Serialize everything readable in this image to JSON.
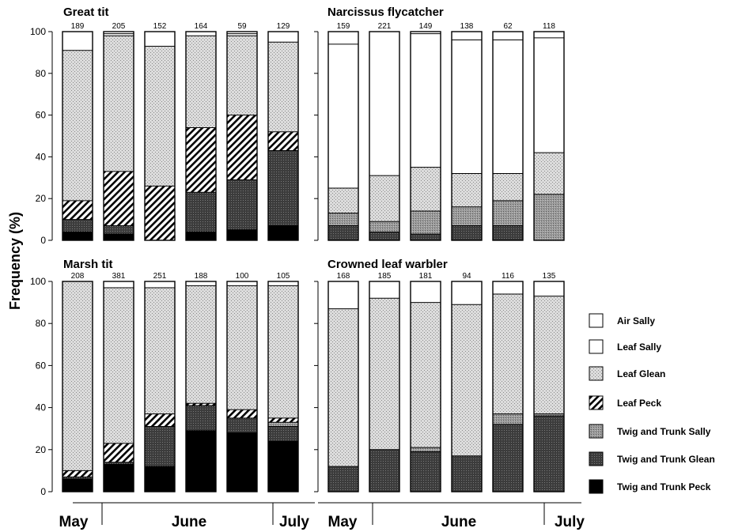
{
  "legend": [
    {
      "key": "air_sally",
      "label": "Air Sally",
      "fill": "white"
    },
    {
      "key": "leaf_sally",
      "label": "Leaf Sally",
      "fill": "white"
    },
    {
      "key": "leaf_glean",
      "label": "Leaf Glean",
      "fill": "pattern-light-stipple"
    },
    {
      "key": "leaf_peck",
      "label": "Leaf Peck",
      "fill": "pattern-hatch"
    },
    {
      "key": "twig_trunk_sally",
      "label": "Twig and Trunk Sally",
      "fill": "pattern-mid-stipple"
    },
    {
      "key": "twig_trunk_glean",
      "label": "Twig and Trunk Glean",
      "fill": "pattern-dark-stipple"
    },
    {
      "key": "twig_trunk_peck",
      "label": "Twig and Trunk Peck",
      "fill": "black"
    }
  ],
  "months": [
    "May",
    "June",
    "July"
  ],
  "colors": {
    "ink": "#000000",
    "leaf_glean": "#d2d2d2",
    "twig_trunk_sally": "#8c8c8c",
    "twig_trunk_glean": "#3c3c3c",
    "twig_trunk_peck": "#000000"
  },
  "chart_data": [
    {
      "type": "bar",
      "stacked": true,
      "title": "Great tit",
      "ylabel": "Frequency (%)",
      "ylim": [
        0,
        100
      ],
      "yticks": [
        0,
        20,
        40,
        60,
        80,
        100
      ],
      "sample_sizes": [
        "189",
        "205",
        "152",
        "164",
        "59",
        "129"
      ],
      "series": [
        {
          "key": "twig_trunk_peck",
          "values": [
            4,
            3,
            0,
            4,
            5,
            7
          ]
        },
        {
          "key": "twig_trunk_glean",
          "values": [
            6,
            4,
            0,
            19,
            24,
            36
          ]
        },
        {
          "key": "twig_trunk_sally",
          "values": [
            0,
            0,
            0,
            0,
            0,
            0
          ]
        },
        {
          "key": "leaf_peck",
          "values": [
            9,
            26,
            26,
            31,
            31,
            9
          ]
        },
        {
          "key": "leaf_glean",
          "values": [
            72,
            65,
            67,
            44,
            38,
            43
          ]
        },
        {
          "key": "leaf_sally",
          "values": [
            0,
            1,
            0,
            0,
            1,
            0
          ]
        },
        {
          "key": "air_sally",
          "values": [
            9,
            1,
            7,
            2,
            1,
            5
          ]
        }
      ]
    },
    {
      "type": "bar",
      "stacked": true,
      "title": "Narcissus flycatcher",
      "ylim": [
        0,
        100
      ],
      "yticks": [
        0,
        20,
        40,
        60,
        80,
        100
      ],
      "sample_sizes": [
        "159",
        "221",
        "149",
        "138",
        "62",
        "118"
      ],
      "series": [
        {
          "key": "twig_trunk_peck",
          "values": [
            0,
            0,
            0,
            0,
            0,
            0
          ]
        },
        {
          "key": "twig_trunk_glean",
          "values": [
            7,
            4,
            3,
            7,
            7,
            0
          ]
        },
        {
          "key": "twig_trunk_sally",
          "values": [
            6,
            5,
            11,
            9,
            12,
            22
          ]
        },
        {
          "key": "leaf_peck",
          "values": [
            0,
            0,
            0,
            0,
            0,
            0
          ]
        },
        {
          "key": "leaf_glean",
          "values": [
            12,
            22,
            21,
            16,
            13,
            20
          ]
        },
        {
          "key": "leaf_sally",
          "values": [
            69,
            69,
            64,
            64,
            64,
            55
          ]
        },
        {
          "key": "air_sally",
          "values": [
            6,
            0,
            1,
            4,
            4,
            3
          ]
        }
      ]
    },
    {
      "type": "bar",
      "stacked": true,
      "title": "Marsh tit",
      "ylim": [
        0,
        100
      ],
      "yticks": [
        0,
        20,
        40,
        60,
        80,
        100
      ],
      "sample_sizes": [
        "208",
        "381",
        "251",
        "188",
        "100",
        "105"
      ],
      "series": [
        {
          "key": "twig_trunk_peck",
          "values": [
            6,
            13,
            12,
            29,
            28,
            24
          ]
        },
        {
          "key": "twig_trunk_glean",
          "values": [
            1,
            1,
            19,
            12,
            7,
            7
          ]
        },
        {
          "key": "twig_trunk_sally",
          "values": [
            0,
            0,
            0,
            0,
            0,
            2
          ]
        },
        {
          "key": "leaf_peck",
          "values": [
            3,
            9,
            6,
            1,
            4,
            2
          ]
        },
        {
          "key": "leaf_glean",
          "values": [
            90,
            74,
            60,
            56,
            59,
            63
          ]
        },
        {
          "key": "leaf_sally",
          "values": [
            0,
            0,
            0,
            0,
            0,
            0
          ]
        },
        {
          "key": "air_sally",
          "values": [
            0,
            3,
            3,
            2,
            2,
            2
          ]
        }
      ]
    },
    {
      "type": "bar",
      "stacked": true,
      "title": "Crowned leaf warbler",
      "ylim": [
        0,
        100
      ],
      "yticks": [
        0,
        20,
        40,
        60,
        80,
        100
      ],
      "sample_sizes": [
        "168",
        "185",
        "181",
        "94",
        "116",
        "135"
      ],
      "series": [
        {
          "key": "twig_trunk_peck",
          "values": [
            0,
            0,
            0,
            0,
            0,
            0
          ]
        },
        {
          "key": "twig_trunk_glean",
          "values": [
            12,
            20,
            19,
            17,
            32,
            36
          ]
        },
        {
          "key": "twig_trunk_sally",
          "values": [
            0,
            0,
            2,
            0,
            5,
            1
          ]
        },
        {
          "key": "leaf_peck",
          "values": [
            0,
            0,
            0,
            0,
            0,
            0
          ]
        },
        {
          "key": "leaf_glean",
          "values": [
            75,
            72,
            69,
            72,
            57,
            56
          ]
        },
        {
          "key": "leaf_sally",
          "values": [
            0,
            0,
            0,
            0,
            0,
            0
          ]
        },
        {
          "key": "air_sally",
          "values": [
            13,
            8,
            10,
            11,
            6,
            7
          ]
        }
      ]
    }
  ]
}
